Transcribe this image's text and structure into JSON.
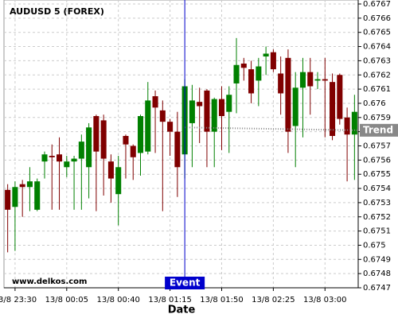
{
  "chart_data": {
    "type": "candlestick",
    "title": "AUDUSD 5 (FOREX)",
    "watermark": "www.delkos.com",
    "x_label": "Date",
    "categories": [
      null,
      "13/8 23:30",
      null,
      null,
      null,
      null,
      null,
      null,
      "13/8 00:05",
      null,
      null,
      null,
      null,
      null,
      null,
      "13/8 00:40",
      null,
      null,
      null,
      null,
      null,
      null,
      "13/8 01:15",
      null,
      null,
      null,
      null,
      null,
      null,
      "13/8 01:50",
      null,
      null,
      null,
      null,
      null,
      null,
      "13/8 02:25",
      null,
      null,
      null,
      null,
      null,
      null,
      "13/8 03:00",
      null,
      null,
      null,
      null
    ],
    "open": [
      0.67539,
      0.67527,
      0.67543,
      0.67541,
      0.67525,
      0.67559,
      0.67563,
      0.67564,
      0.67555,
      0.67559,
      0.67561,
      0.67555,
      0.67591,
      0.67588,
      0.67559,
      0.67536,
      0.67577,
      0.6757,
      0.67565,
      0.67566,
      0.67605,
      0.67595,
      0.67587,
      0.6758,
      0.67564,
      0.67586,
      0.67601,
      0.67609,
      0.6758,
      0.67603,
      0.67594,
      0.67614,
      0.67628,
      0.67624,
      0.67616,
      0.67633,
      0.67636,
      0.67621,
      0.67632,
      0.67584,
      0.67611,
      0.67622,
      0.67616,
      0.67617,
      0.67615,
      0.6762,
      0.6759,
      0.67578
    ],
    "high": [
      0.67543,
      0.67545,
      0.67546,
      0.67555,
      0.67547,
      0.67566,
      0.67571,
      0.67576,
      0.67563,
      0.67563,
      0.67578,
      0.67586,
      0.67592,
      0.67592,
      0.67564,
      0.67563,
      0.67578,
      0.67571,
      0.67592,
      0.67615,
      0.67609,
      0.67602,
      0.67589,
      0.67594,
      0.67617,
      0.67613,
      0.67611,
      0.6761,
      0.67604,
      0.67612,
      0.67612,
      0.67646,
      0.67632,
      0.6763,
      0.67632,
      0.6764,
      0.67638,
      0.67633,
      0.67638,
      0.67622,
      0.67632,
      0.67632,
      0.67622,
      0.67632,
      0.67621,
      0.67621,
      0.67597,
      0.67606
    ],
    "low": [
      0.67495,
      0.67496,
      0.6752,
      0.67524,
      0.67524,
      0.67547,
      0.67525,
      0.67525,
      0.67548,
      0.67525,
      0.67525,
      0.67533,
      0.67524,
      0.67535,
      0.6753,
      0.67514,
      0.67547,
      0.67546,
      0.67549,
      0.67564,
      0.67565,
      0.67524,
      0.67563,
      0.67534,
      0.67547,
      0.67555,
      0.67572,
      0.67555,
      0.67555,
      0.67567,
      0.67565,
      0.67593,
      0.67616,
      0.676,
      0.67598,
      0.6762,
      0.67622,
      0.67592,
      0.67565,
      0.67555,
      0.67576,
      0.67592,
      0.6761,
      0.67576,
      0.67574,
      0.67585,
      0.67545,
      0.67546
    ],
    "close": [
      0.67525,
      0.67541,
      0.67541,
      0.67545,
      0.67545,
      0.67564,
      0.67562,
      0.67559,
      0.67559,
      0.67561,
      0.67573,
      0.67583,
      0.67566,
      0.67561,
      0.67547,
      0.67555,
      0.67571,
      0.67562,
      0.67591,
      0.67602,
      0.67597,
      0.67587,
      0.6758,
      0.67555,
      0.67612,
      0.67602,
      0.67598,
      0.6758,
      0.67603,
      0.67591,
      0.67606,
      0.67627,
      0.67625,
      0.67607,
      0.67626,
      0.67635,
      0.67624,
      0.67607,
      0.6758,
      0.67611,
      0.67622,
      0.67612,
      0.67617,
      0.67616,
      0.67577,
      0.67589,
      0.67578,
      0.67594
    ],
    "up_color": "#008000",
    "down_color": "#800000",
    "ylim": [
      0.6747,
      0.6767
    ],
    "yticks": [
      0.6747,
      0.6748,
      0.6749,
      0.675,
      0.6751,
      0.6752,
      0.6753,
      0.6754,
      0.6755,
      0.6756,
      0.6757,
      0.6758,
      0.6759,
      0.676,
      0.6761,
      0.6762,
      0.6763,
      0.6764,
      0.6765,
      0.6766,
      0.6767
    ],
    "grid": true,
    "events": [
      {
        "label": "Event",
        "index": 24,
        "color": "#0000cc"
      }
    ],
    "trend": {
      "label": "Trend",
      "index": [
        24,
        47
      ],
      "values": [
        0.67583,
        0.67581
      ],
      "color": "#888888"
    }
  }
}
